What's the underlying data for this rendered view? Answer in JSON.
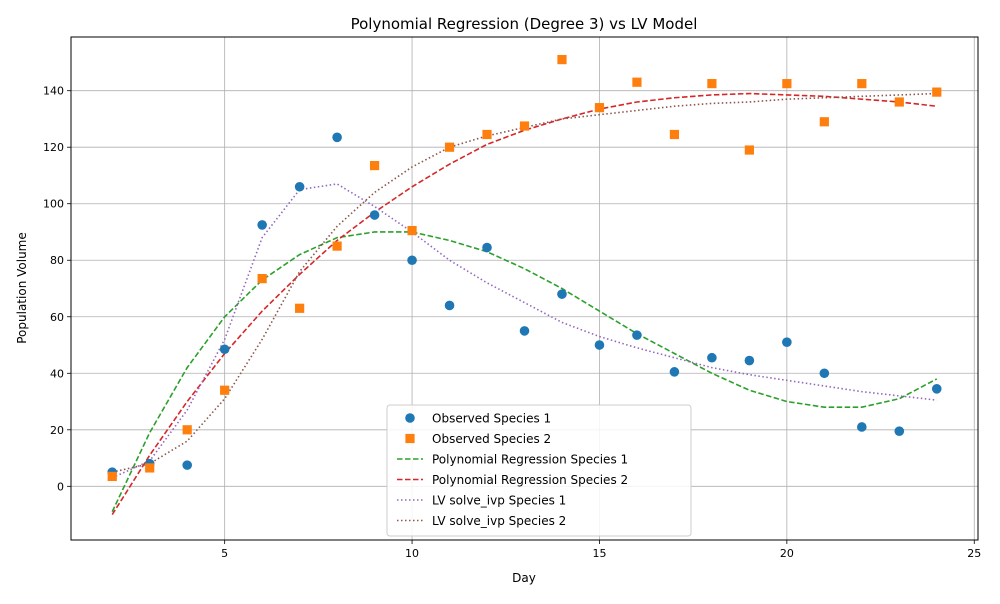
{
  "chart_data": {
    "type": "scatter",
    "title": "Polynomial Regression (Degree 3) vs LV Model",
    "xlabel": "Day",
    "ylabel": "Population Volume",
    "xlim": [
      0.9,
      25.1
    ],
    "ylim": [
      -19,
      159
    ],
    "xticks": [
      5,
      10,
      15,
      20,
      25
    ],
    "yticks": [
      0,
      20,
      40,
      60,
      80,
      100,
      120,
      140
    ],
    "grid": true,
    "legend_position": "lower-center",
    "series": [
      {
        "name": "Observed Species 1",
        "kind": "marker-circle",
        "color": "#1f77b4",
        "x": [
          2,
          3,
          4,
          5,
          6,
          7,
          8,
          9,
          10,
          11,
          12,
          13,
          14,
          15,
          16,
          17,
          18,
          19,
          20,
          21,
          22,
          23,
          24
        ],
        "y": [
          5,
          8,
          7.5,
          48.5,
          92.5,
          106,
          123.5,
          96,
          80,
          64,
          84.5,
          55,
          68,
          50,
          53.5,
          40.5,
          45.5,
          44.5,
          51,
          40,
          21,
          19.5,
          34.5
        ]
      },
      {
        "name": "Observed Species 2",
        "kind": "marker-square",
        "color": "#ff7f0e",
        "x": [
          2,
          3,
          4,
          5,
          6,
          7,
          8,
          9,
          10,
          11,
          12,
          13,
          14,
          15,
          16,
          17,
          18,
          19,
          20,
          21,
          22,
          23,
          24
        ],
        "y": [
          3.5,
          6.5,
          20,
          34,
          73.5,
          63,
          85,
          113.5,
          90.5,
          120,
          124.5,
          127.5,
          151,
          134,
          143,
          124.5,
          142.5,
          119,
          142.5,
          129,
          142.5,
          136,
          139.5
        ]
      },
      {
        "name": "Polynomial Regression Species 1",
        "kind": "line-dashed",
        "color": "#2ca02c",
        "x": [
          2,
          3,
          4,
          5,
          6,
          7,
          8,
          9,
          10,
          11,
          12,
          13,
          14,
          15,
          16,
          17,
          18,
          19,
          20,
          21,
          22,
          23,
          24
        ],
        "y": [
          -9,
          19,
          42,
          60,
          73,
          82,
          88,
          90,
          90,
          87,
          83,
          77,
          70,
          62,
          54,
          47,
          40,
          34,
          30,
          28,
          28,
          31,
          38
        ]
      },
      {
        "name": "Polynomial Regression Species 2",
        "kind": "line-dashed",
        "color": "#d62728",
        "x": [
          2,
          3,
          4,
          5,
          6,
          7,
          8,
          9,
          10,
          11,
          12,
          13,
          14,
          15,
          16,
          17,
          18,
          19,
          20,
          21,
          22,
          23,
          24
        ],
        "y": [
          -10,
          11,
          30,
          47,
          62,
          75,
          87,
          97,
          106,
          114,
          121,
          126,
          130,
          133.5,
          136,
          137.5,
          138.5,
          139,
          138.5,
          138,
          137,
          136,
          134.5
        ]
      },
      {
        "name": "LV solve_ivp Species 1",
        "kind": "line-dotted",
        "color": "#9467bd",
        "x": [
          2,
          3,
          4,
          5,
          6,
          7,
          8,
          9,
          10,
          11,
          12,
          13,
          14,
          15,
          16,
          17,
          18,
          19,
          20,
          21,
          22,
          23,
          24
        ],
        "y": [
          3,
          9,
          27,
          52,
          88,
          105,
          107,
          99,
          90,
          80,
          72,
          65,
          58,
          53,
          49,
          45.5,
          42,
          39.5,
          37.5,
          35.5,
          33.5,
          32,
          30.5
        ]
      },
      {
        "name": "LV solve_ivp Species 2",
        "kind": "line-dotted",
        "color": "#8c564b",
        "x": [
          2,
          3,
          4,
          5,
          6,
          7,
          8,
          9,
          10,
          11,
          12,
          13,
          14,
          15,
          16,
          17,
          18,
          19,
          20,
          21,
          22,
          23,
          24
        ],
        "y": [
          5,
          8,
          16,
          31,
          52,
          76,
          92,
          104,
          113,
          120,
          124,
          127,
          130,
          131.5,
          133,
          134.5,
          135.5,
          136,
          137,
          137.5,
          138,
          138.5,
          139
        ]
      }
    ]
  }
}
